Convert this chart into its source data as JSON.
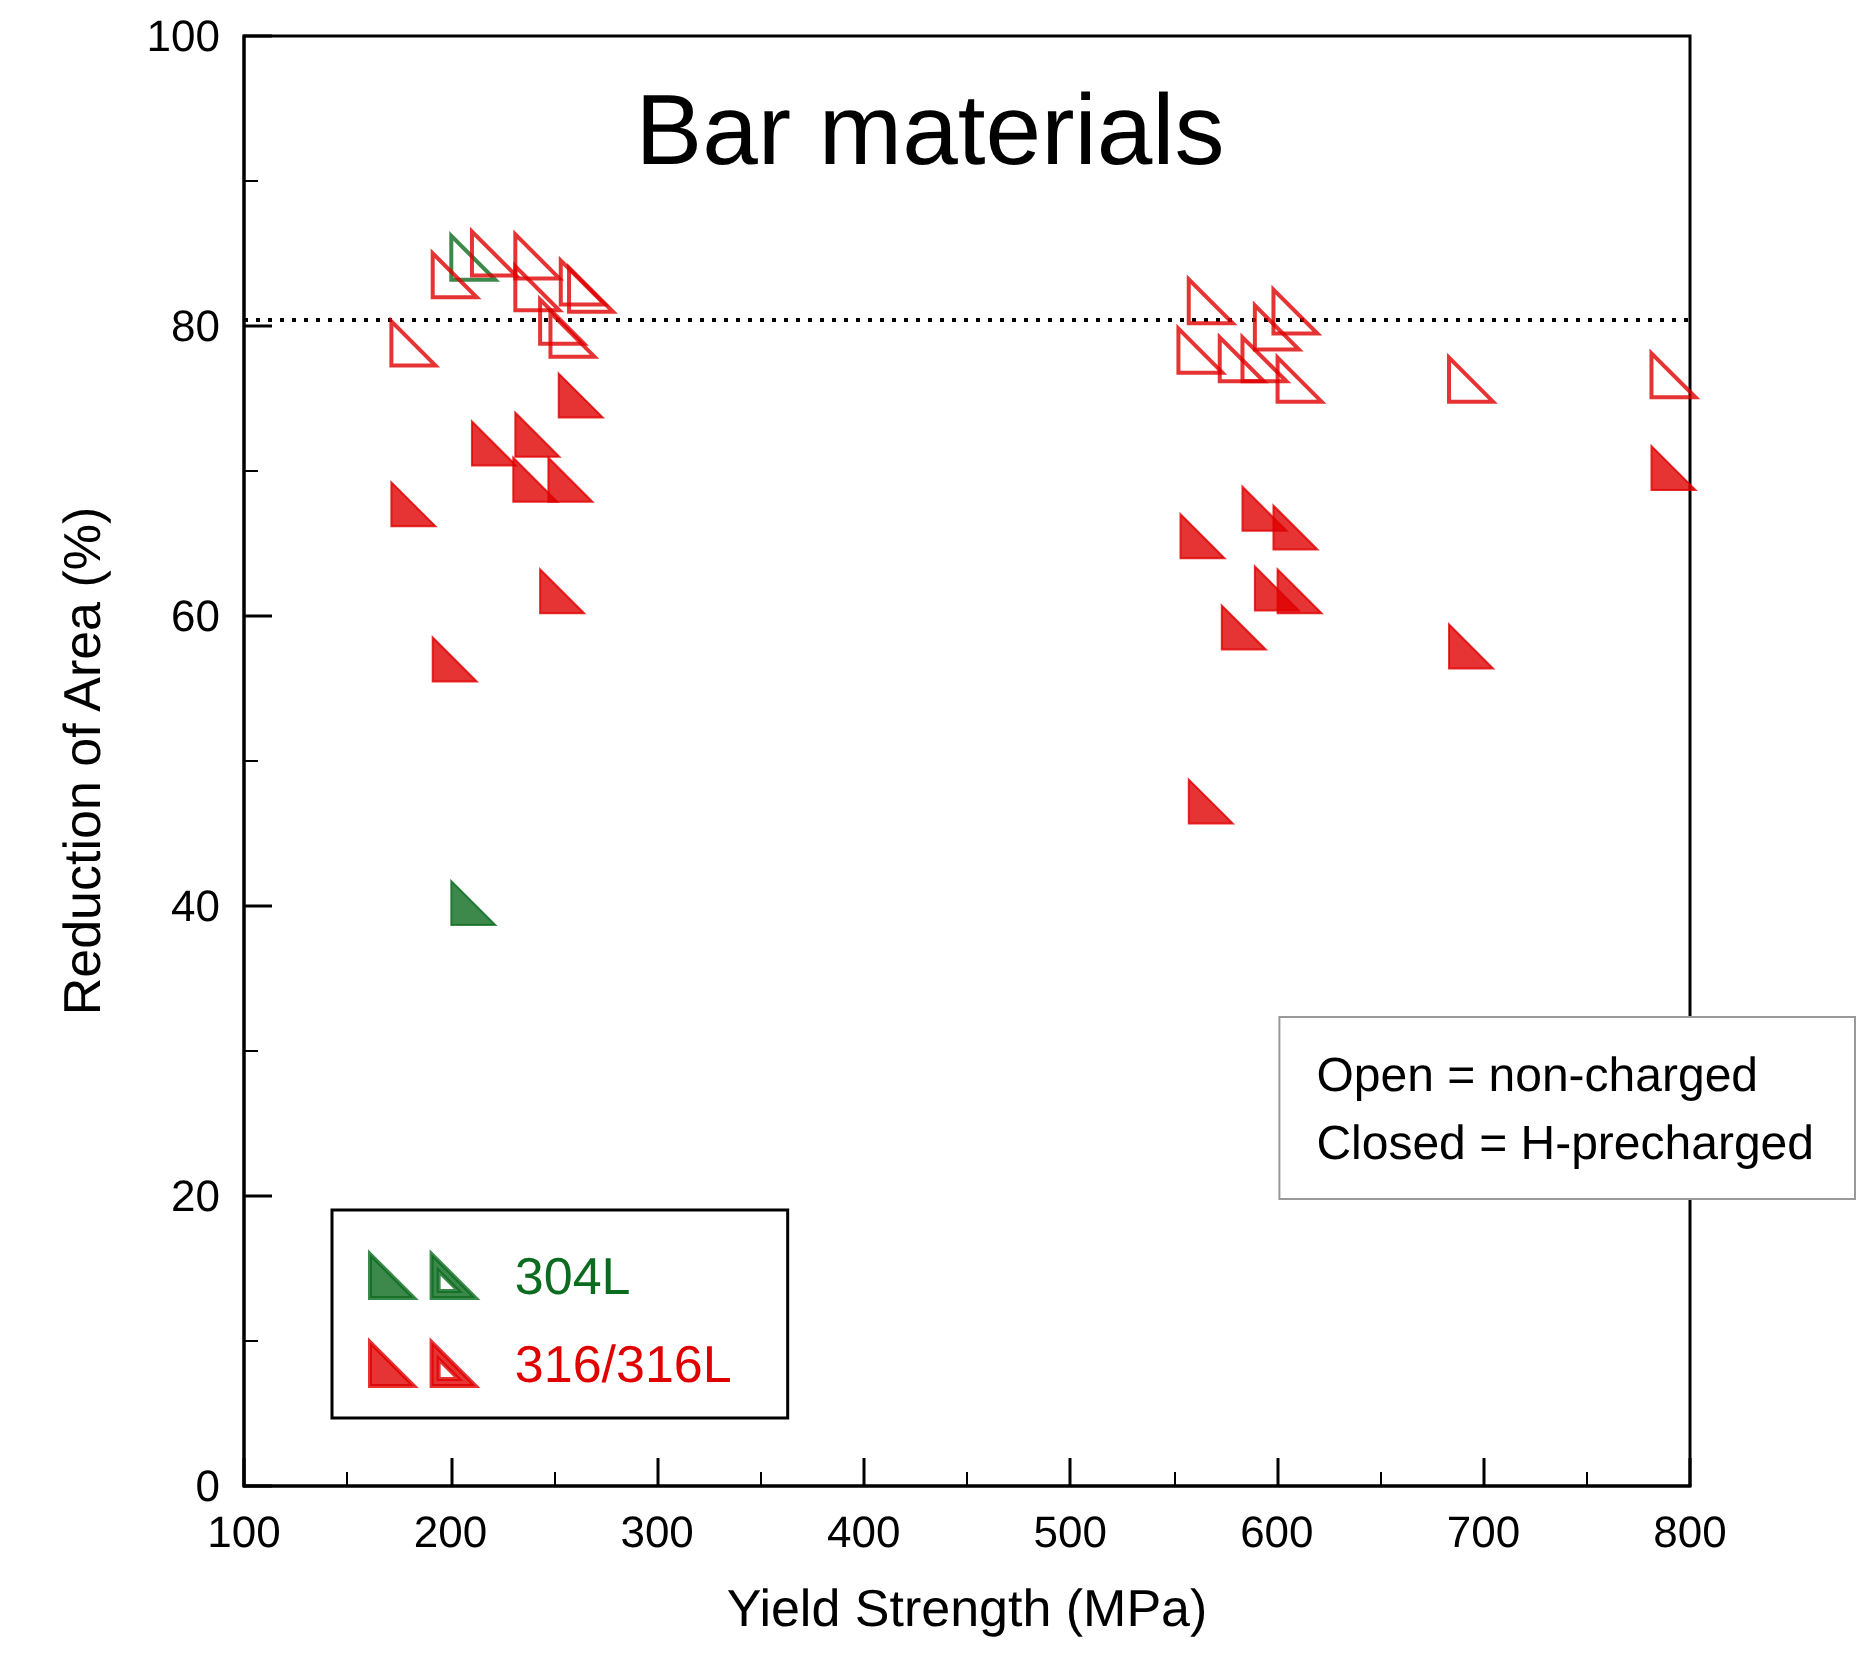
{
  "chart_data": {
    "type": "scatter",
    "title": "Bar materials",
    "xlabel": "Yield Strength (MPa)",
    "ylabel": "Reduction of Area (%)",
    "xlim": [
      100,
      800
    ],
    "xticks": [
      100,
      200,
      300,
      400,
      500,
      600,
      700,
      800
    ],
    "ylim": [
      0,
      100
    ],
    "yticks": [
      0,
      20,
      40,
      60,
      80,
      100
    ],
    "grid": false,
    "legend": "bottom left",
    "marker": "triangle",
    "series": [
      {
        "name": "304L",
        "color": "#0b6b1e",
        "x": [
          211
        ],
        "values": [
          40.2
        ]
      },
      {
        "color": "#0b6b1e",
        "x": [
          211
        ],
        "values": [
          84.7
        ]
      },
      {
        "name": "316/316L",
        "color": "#e00000",
        "x": [
          263,
          221,
          242,
          241,
          258,
          182,
          254,
          202,
          594,
          609,
          564,
          600,
          611,
          584,
          568,
          694,
          792
        ],
        "values": [
          75.2,
          71.9,
          72.5,
          69.4,
          69.4,
          67.7,
          61.7,
          57.0,
          67.4,
          66.1,
          65.5,
          61.9,
          61.7,
          59.2,
          47.2,
          57.9,
          70.2
        ]
      },
      {
        "color": "#e00000",
        "x": [
          202,
          221,
          242,
          242,
          264,
          268,
          254,
          259,
          182,
          568,
          609,
          600,
          563,
          583,
          594,
          611,
          694,
          792
        ],
        "values": [
          83.5,
          85.0,
          84.8,
          82.6,
          83.0,
          82.5,
          80.3,
          79.4,
          78.8,
          81.7,
          81.0,
          79.9,
          78.3,
          77.7,
          77.7,
          76.3,
          76.3,
          76.6
        ]
      }
    ],
    "ref_lines": [
      {
        "axis": "y",
        "value": 80.5,
        "line_style": "dotted",
        "color": "#000000"
      }
    ],
    "annotations": [
      "Open = non-charged",
      "Closed = H-precharged"
    ]
  }
}
